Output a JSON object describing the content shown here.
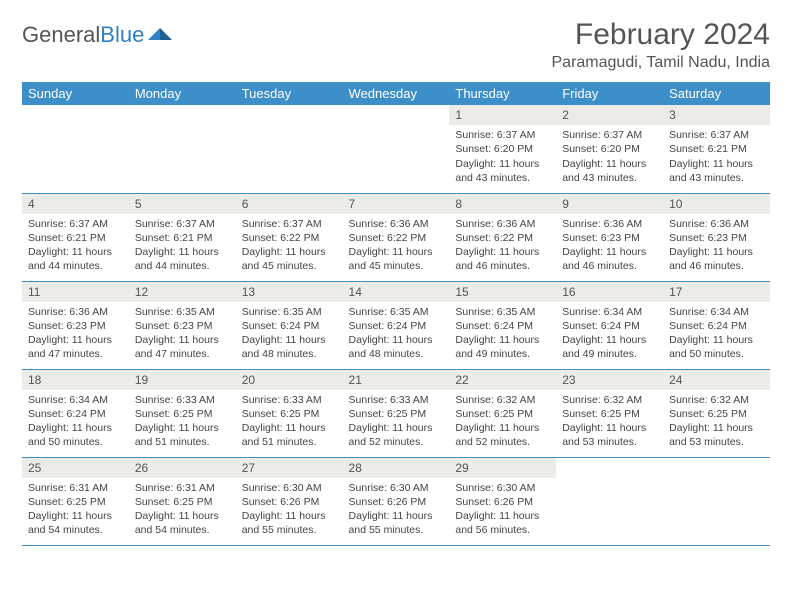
{
  "brand": {
    "part1": "General",
    "part2": "Blue"
  },
  "title": "February 2024",
  "location": "Paramagudi, Tamil Nadu, India",
  "colors": {
    "header_bg": "#3d8fc9",
    "brand_blue": "#2f7fc2",
    "daynum_bg": "#ecebe8",
    "rule": "#3d8fc9",
    "text": "#444444"
  },
  "dayNames": [
    "Sunday",
    "Monday",
    "Tuesday",
    "Wednesday",
    "Thursday",
    "Friday",
    "Saturday"
  ],
  "weeks": [
    [
      null,
      null,
      null,
      null,
      {
        "n": "1",
        "sr": "6:37 AM",
        "ss": "6:20 PM",
        "dl": "11 hours and 43 minutes."
      },
      {
        "n": "2",
        "sr": "6:37 AM",
        "ss": "6:20 PM",
        "dl": "11 hours and 43 minutes."
      },
      {
        "n": "3",
        "sr": "6:37 AM",
        "ss": "6:21 PM",
        "dl": "11 hours and 43 minutes."
      }
    ],
    [
      {
        "n": "4",
        "sr": "6:37 AM",
        "ss": "6:21 PM",
        "dl": "11 hours and 44 minutes."
      },
      {
        "n": "5",
        "sr": "6:37 AM",
        "ss": "6:21 PM",
        "dl": "11 hours and 44 minutes."
      },
      {
        "n": "6",
        "sr": "6:37 AM",
        "ss": "6:22 PM",
        "dl": "11 hours and 45 minutes."
      },
      {
        "n": "7",
        "sr": "6:36 AM",
        "ss": "6:22 PM",
        "dl": "11 hours and 45 minutes."
      },
      {
        "n": "8",
        "sr": "6:36 AM",
        "ss": "6:22 PM",
        "dl": "11 hours and 46 minutes."
      },
      {
        "n": "9",
        "sr": "6:36 AM",
        "ss": "6:23 PM",
        "dl": "11 hours and 46 minutes."
      },
      {
        "n": "10",
        "sr": "6:36 AM",
        "ss": "6:23 PM",
        "dl": "11 hours and 46 minutes."
      }
    ],
    [
      {
        "n": "11",
        "sr": "6:36 AM",
        "ss": "6:23 PM",
        "dl": "11 hours and 47 minutes."
      },
      {
        "n": "12",
        "sr": "6:35 AM",
        "ss": "6:23 PM",
        "dl": "11 hours and 47 minutes."
      },
      {
        "n": "13",
        "sr": "6:35 AM",
        "ss": "6:24 PM",
        "dl": "11 hours and 48 minutes."
      },
      {
        "n": "14",
        "sr": "6:35 AM",
        "ss": "6:24 PM",
        "dl": "11 hours and 48 minutes."
      },
      {
        "n": "15",
        "sr": "6:35 AM",
        "ss": "6:24 PM",
        "dl": "11 hours and 49 minutes."
      },
      {
        "n": "16",
        "sr": "6:34 AM",
        "ss": "6:24 PM",
        "dl": "11 hours and 49 minutes."
      },
      {
        "n": "17",
        "sr": "6:34 AM",
        "ss": "6:24 PM",
        "dl": "11 hours and 50 minutes."
      }
    ],
    [
      {
        "n": "18",
        "sr": "6:34 AM",
        "ss": "6:24 PM",
        "dl": "11 hours and 50 minutes."
      },
      {
        "n": "19",
        "sr": "6:33 AM",
        "ss": "6:25 PM",
        "dl": "11 hours and 51 minutes."
      },
      {
        "n": "20",
        "sr": "6:33 AM",
        "ss": "6:25 PM",
        "dl": "11 hours and 51 minutes."
      },
      {
        "n": "21",
        "sr": "6:33 AM",
        "ss": "6:25 PM",
        "dl": "11 hours and 52 minutes."
      },
      {
        "n": "22",
        "sr": "6:32 AM",
        "ss": "6:25 PM",
        "dl": "11 hours and 52 minutes."
      },
      {
        "n": "23",
        "sr": "6:32 AM",
        "ss": "6:25 PM",
        "dl": "11 hours and 53 minutes."
      },
      {
        "n": "24",
        "sr": "6:32 AM",
        "ss": "6:25 PM",
        "dl": "11 hours and 53 minutes."
      }
    ],
    [
      {
        "n": "25",
        "sr": "6:31 AM",
        "ss": "6:25 PM",
        "dl": "11 hours and 54 minutes."
      },
      {
        "n": "26",
        "sr": "6:31 AM",
        "ss": "6:25 PM",
        "dl": "11 hours and 54 minutes."
      },
      {
        "n": "27",
        "sr": "6:30 AM",
        "ss": "6:26 PM",
        "dl": "11 hours and 55 minutes."
      },
      {
        "n": "28",
        "sr": "6:30 AM",
        "ss": "6:26 PM",
        "dl": "11 hours and 55 minutes."
      },
      {
        "n": "29",
        "sr": "6:30 AM",
        "ss": "6:26 PM",
        "dl": "11 hours and 56 minutes."
      },
      null,
      null
    ]
  ],
  "labels": {
    "sunrise": "Sunrise: ",
    "sunset": "Sunset: ",
    "daylight": "Daylight: "
  }
}
